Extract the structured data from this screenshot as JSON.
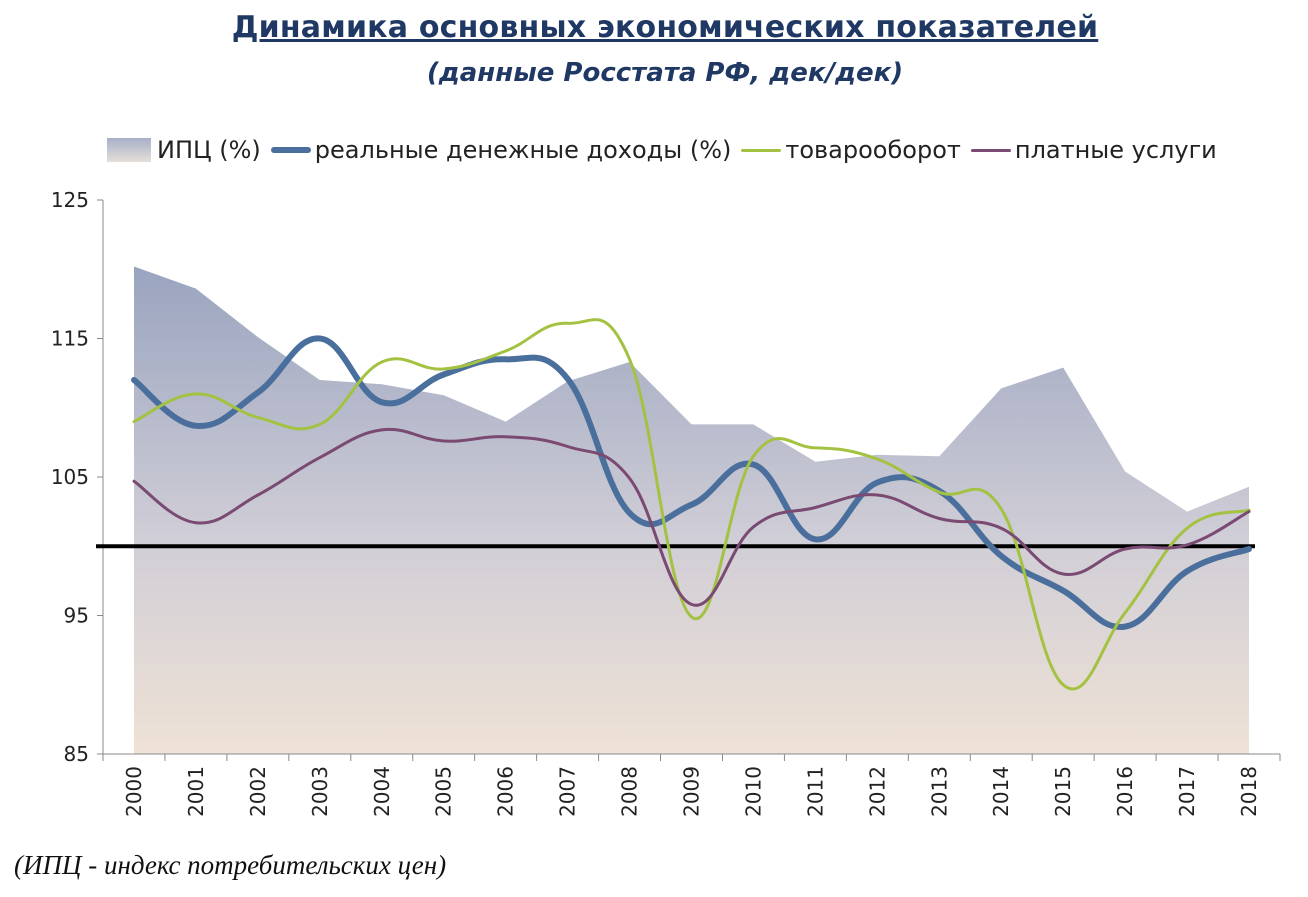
{
  "title": "Динамика основных экономических показателей",
  "subtitle": "(данные Росстата РФ, дек/дек)",
  "footnote": "(ИПЦ - индекс потребительских цен)",
  "legend": [
    {
      "label": "ИПЦ  (%)",
      "kind": "area"
    },
    {
      "label": "реальные денежные доходы (%)",
      "kind": "line",
      "color": "#4a6f9c"
    },
    {
      "label": "товарооборот",
      "kind": "line",
      "color": "#a4c242"
    },
    {
      "label": "платные услуги",
      "kind": "line",
      "color": "#7a4a72"
    }
  ],
  "chart_data": {
    "type": "line",
    "categories": [
      "2000",
      "2001",
      "2002",
      "2003",
      "2004",
      "2005",
      "2006",
      "2007",
      "2008",
      "2009",
      "2010",
      "2011",
      "2012",
      "2013",
      "2014",
      "2015",
      "2016",
      "2017",
      "2018"
    ],
    "ylim": [
      85,
      125
    ],
    "yticks": [
      85,
      95,
      105,
      115,
      125
    ],
    "reference_line": 100,
    "series": [
      {
        "name": "ИПЦ  (%)",
        "kind": "area",
        "color": "#a7b0c7",
        "values": [
          120.2,
          118.6,
          115.1,
          112.0,
          111.7,
          110.9,
          109.0,
          111.9,
          113.3,
          108.8,
          108.8,
          106.1,
          106.6,
          106.5,
          111.4,
          112.9,
          105.4,
          102.5,
          104.3
        ]
      },
      {
        "name": "реальные денежные доходы (%)",
        "kind": "line",
        "color": "#4a6f9c",
        "width": 6,
        "values": [
          112.0,
          108.7,
          111.1,
          115.0,
          110.4,
          112.4,
          113.5,
          112.1,
          102.4,
          103.0,
          105.9,
          100.5,
          104.6,
          104.0,
          99.3,
          96.8,
          94.2,
          98.2,
          99.8
        ]
      },
      {
        "name": "товарооборот",
        "kind": "line",
        "color": "#a4c242",
        "width": 3,
        "values": [
          109.0,
          111.0,
          109.3,
          108.8,
          113.3,
          112.8,
          114.1,
          116.1,
          113.5,
          94.9,
          106.5,
          107.1,
          106.3,
          103.9,
          102.7,
          90.0,
          95.2,
          101.3,
          102.6
        ]
      },
      {
        "name": "платные услуги",
        "kind": "line",
        "color": "#7a4a72",
        "width": 3,
        "values": [
          104.7,
          101.7,
          103.7,
          106.4,
          108.4,
          107.6,
          107.9,
          107.2,
          104.9,
          95.8,
          101.4,
          102.8,
          103.7,
          102.0,
          101.3,
          98.0,
          99.8,
          100.1,
          102.5
        ]
      }
    ]
  }
}
